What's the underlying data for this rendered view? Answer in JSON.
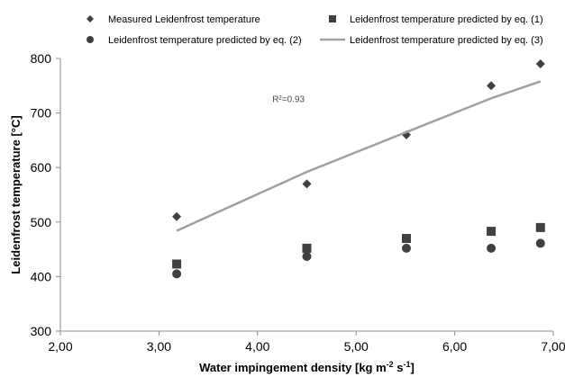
{
  "chart_data": {
    "type": "scatter",
    "xlabel": {
      "parts": [
        {
          "text": "Water impingement density [kg m",
          "sup": false
        },
        {
          "text": "-2",
          "sup": true
        },
        {
          "text": " s",
          "sup": false
        },
        {
          "text": "-1",
          "sup": true
        },
        {
          "text": "]",
          "sup": false
        }
      ]
    },
    "ylabel": "Leidenfrost  temperature [°C]",
    "xlim": [
      2.0,
      7.0
    ],
    "ylim": [
      300,
      800
    ],
    "x_ticks": [
      2.0,
      3.0,
      4.0,
      5.0,
      6.0,
      7.0
    ],
    "x_tick_labels": [
      "2,00",
      "3,00",
      "4,00",
      "5,00",
      "6,00",
      "7,00"
    ],
    "y_ticks": [
      300,
      400,
      500,
      600,
      700,
      800
    ],
    "y_tick_labels": [
      "300",
      "400",
      "500",
      "600",
      "700",
      "800"
    ],
    "grid": false,
    "legend_position": "top",
    "annotation": {
      "text": "R²=0.93",
      "x": 4.15,
      "y": 720
    },
    "series": [
      {
        "name": "Measured Leidenfrost temperature",
        "marker": "diamond",
        "color": "#404040",
        "x": [
          3.18,
          4.5,
          5.51,
          6.37,
          6.87
        ],
        "y": [
          510,
          570,
          660,
          750,
          790
        ]
      },
      {
        "name": "Leidenfrost temperature predicted by eq. (1)",
        "marker": "square",
        "color": "#404040",
        "x": [
          3.18,
          4.5,
          5.51,
          6.37,
          6.87
        ],
        "y": [
          423,
          452,
          470,
          483,
          490
        ]
      },
      {
        "name": "Leidenfrost temperature predicted by eq. (2)",
        "marker": "circle",
        "color": "#404040",
        "x": [
          3.18,
          4.5,
          5.51,
          6.37,
          6.87
        ],
        "y": [
          405,
          437,
          452,
          452,
          461
        ]
      },
      {
        "name": "Leidenfrost temperature predicted by eq. (3)",
        "marker": "line",
        "color": "#a0a0a0",
        "x": [
          3.18,
          4.5,
          5.51,
          6.37,
          6.87
        ],
        "y": [
          484,
          592,
          665,
          727,
          758
        ]
      }
    ]
  }
}
